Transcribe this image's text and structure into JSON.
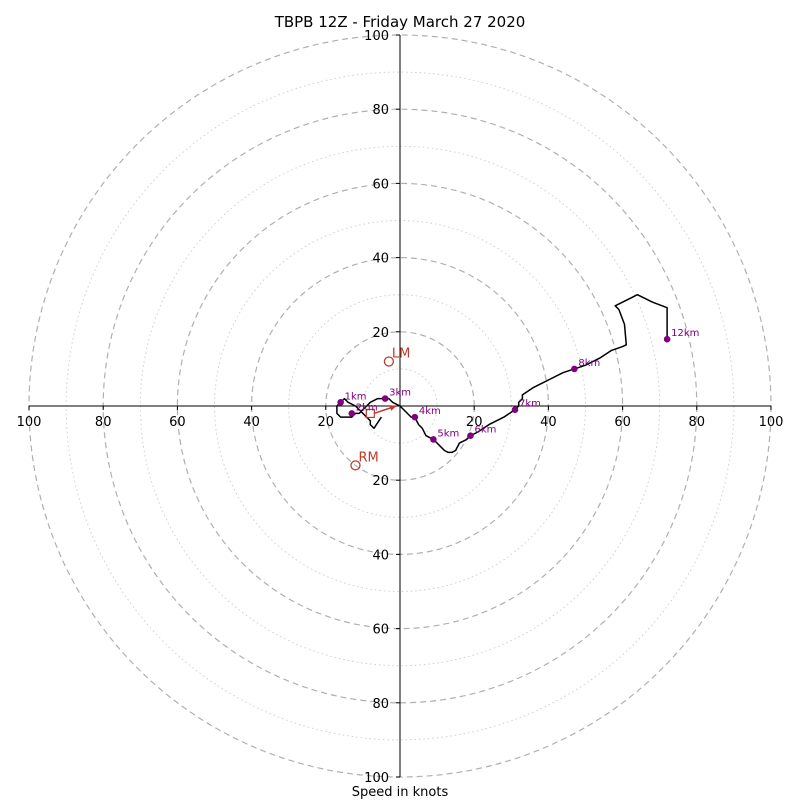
{
  "chart_data": {
    "type": "hodograph",
    "title": "TBPB 12Z - Friday March 27 2020",
    "xlabel": "Speed in knots",
    "rlim": [
      0,
      100
    ],
    "ring_major": [
      20,
      40,
      60,
      80,
      100
    ],
    "ring_minor": [
      10,
      30,
      50,
      70,
      90
    ],
    "tick_labels": [
      "20",
      "40",
      "60",
      "80",
      "100"
    ],
    "colors": {
      "trace": "#000000",
      "height_marker": "#800080",
      "storm_motion": "#c0392b",
      "ring": "#b0b0b0",
      "axis": "#000000"
    },
    "trace": [
      [
        -5,
        -3
      ],
      [
        -7,
        -6
      ],
      [
        -8,
        -5
      ],
      [
        -8,
        -4
      ],
      [
        -10,
        -2
      ],
      [
        -12,
        0
      ],
      [
        -14,
        1
      ],
      [
        -15,
        2
      ],
      [
        -16,
        1
      ],
      [
        -17,
        0
      ],
      [
        -17,
        -2
      ],
      [
        -16,
        -3
      ],
      [
        -13,
        -3
      ],
      [
        -12,
        -2
      ],
      [
        -11,
        -2
      ],
      [
        -10,
        -1
      ],
      [
        -9,
        0
      ],
      [
        -8,
        1
      ],
      [
        -6,
        2
      ],
      [
        -4,
        2
      ],
      [
        -3,
        2
      ],
      [
        -2,
        1
      ],
      [
        0,
        0
      ],
      [
        2,
        -2
      ],
      [
        3,
        -3
      ],
      [
        4,
        -3
      ],
      [
        5,
        -5
      ],
      [
        6,
        -6
      ],
      [
        7,
        -8
      ],
      [
        9,
        -9
      ],
      [
        10,
        -10
      ],
      [
        11,
        -11
      ],
      [
        12,
        -12
      ],
      [
        13,
        -12.5
      ],
      [
        14,
        -12.5
      ],
      [
        15,
        -12
      ],
      [
        16,
        -10
      ],
      [
        18,
        -9
      ],
      [
        19,
        -8
      ],
      [
        21,
        -7
      ],
      [
        24,
        -5
      ],
      [
        28,
        -3
      ],
      [
        31,
        -1
      ],
      [
        32,
        0
      ],
      [
        32,
        1
      ],
      [
        33,
        2
      ],
      [
        33,
        3
      ],
      [
        36,
        5
      ],
      [
        40,
        7
      ],
      [
        44,
        9
      ],
      [
        47,
        10
      ],
      [
        50,
        11
      ],
      [
        54,
        13
      ],
      [
        57,
        15
      ],
      [
        60,
        16
      ],
      [
        61,
        16.5
      ],
      [
        60.5,
        22
      ],
      [
        59,
        26
      ],
      [
        58,
        27
      ],
      [
        62,
        29
      ],
      [
        64,
        30
      ],
      [
        68,
        28
      ],
      [
        72,
        26.5
      ],
      [
        72,
        22
      ],
      [
        72,
        18
      ]
    ],
    "height_markers": [
      {
        "label": "1km",
        "u": -16,
        "v": 1
      },
      {
        "label": "2km",
        "u": -13,
        "v": -2
      },
      {
        "label": "3km",
        "u": -4,
        "v": 2
      },
      {
        "label": "4km",
        "u": 4,
        "v": -3
      },
      {
        "label": "5km",
        "u": 9,
        "v": -9
      },
      {
        "label": "6km",
        "u": 19,
        "v": -8
      },
      {
        "label": "7km",
        "u": 31,
        "v": -1
      },
      {
        "label": "8km",
        "u": 47,
        "v": 10
      },
      {
        "label": "12km",
        "u": 72,
        "v": 18
      }
    ],
    "storm_motion": [
      {
        "label": "LM",
        "u": -3,
        "v": 12
      },
      {
        "label": "RM",
        "u": -12,
        "v": -16
      }
    ],
    "mean_wind": {
      "u": -8,
      "v": -2
    },
    "shear_arrow": {
      "from": [
        -7,
        -2
      ],
      "to": [
        -1,
        0
      ]
    }
  }
}
